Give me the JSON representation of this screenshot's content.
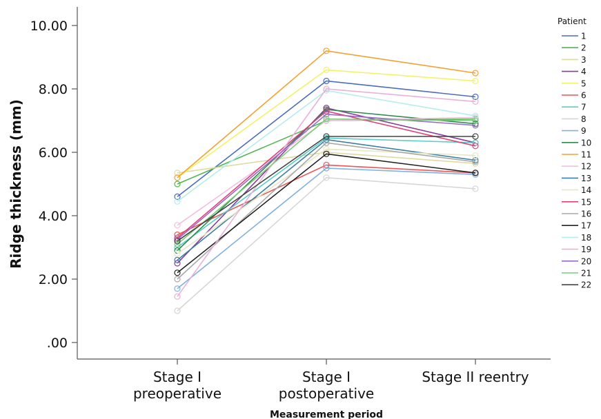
{
  "chart_data": {
    "type": "line",
    "categories": [
      "Stage I|preoperative",
      "Stage I|postoperative",
      "Stage II reentry"
    ],
    "ylabel": "Ridge thickness (mm)",
    "xlabel": "Measurement period",
    "ylim": [
      0,
      10
    ],
    "yticks": [
      0,
      2,
      4,
      6,
      8,
      10
    ],
    "ytick_labels": [
      ".00",
      "2.00",
      "4.00",
      "6.00",
      "8.00",
      "10.00"
    ],
    "legend_title": "Patient",
    "legend_position": "right",
    "grid": false,
    "marker": "open-circle",
    "series": [
      {
        "name": "1",
        "color": "#4a6cbf",
        "values": [
          4.6,
          8.25,
          7.75
        ]
      },
      {
        "name": "2",
        "color": "#52b552",
        "values": [
          5.0,
          7.0,
          7.05
        ]
      },
      {
        "name": "3",
        "color": "#dedba0",
        "values": [
          5.35,
          6.0,
          5.65
        ]
      },
      {
        "name": "4",
        "color": "#8a3a9a",
        "values": [
          2.5,
          7.4,
          6.3
        ]
      },
      {
        "name": "5",
        "color": "#f2f266",
        "values": [
          5.2,
          8.6,
          8.25
        ]
      },
      {
        "name": "6",
        "color": "#ee5555",
        "values": [
          3.4,
          5.6,
          5.35
        ]
      },
      {
        "name": "7",
        "color": "#55cfc8",
        "values": [
          3.0,
          6.45,
          6.3
        ]
      },
      {
        "name": "8",
        "color": "#d6d6d6",
        "values": [
          1.0,
          5.2,
          4.85
        ]
      },
      {
        "name": "9",
        "color": "#80b0e0",
        "values": [
          1.7,
          5.5,
          5.3
        ]
      },
      {
        "name": "10",
        "color": "#2e8a4a",
        "values": [
          2.9,
          7.35,
          6.9
        ]
      },
      {
        "name": "11",
        "color": "#f5a030",
        "values": [
          5.2,
          9.2,
          8.5
        ]
      },
      {
        "name": "12",
        "color": "#f0c0e0",
        "values": [
          3.7,
          7.0,
          7.1
        ]
      },
      {
        "name": "13",
        "color": "#3c7fa0",
        "values": [
          2.6,
          6.4,
          5.75
        ]
      },
      {
        "name": "14",
        "color": "#e8e6c4",
        "values": [
          2.8,
          6.1,
          5.9
        ]
      },
      {
        "name": "15",
        "color": "#e0407a",
        "values": [
          3.3,
          7.3,
          6.2
        ]
      },
      {
        "name": "16",
        "color": "#a8a8a8",
        "values": [
          2.0,
          6.3,
          5.7
        ]
      },
      {
        "name": "17",
        "color": "#222222",
        "values": [
          2.2,
          5.95,
          5.35
        ]
      },
      {
        "name": "18",
        "color": "#b6ecec",
        "values": [
          4.45,
          7.95,
          7.15
        ]
      },
      {
        "name": "19",
        "color": "#eab0d8",
        "values": [
          1.45,
          8.0,
          7.6
        ]
      },
      {
        "name": "20",
        "color": "#9a6ac8",
        "values": [
          3.25,
          7.2,
          6.85
        ]
      },
      {
        "name": "21",
        "color": "#7acc7a",
        "values": [
          3.1,
          7.05,
          7.0
        ]
      },
      {
        "name": "22",
        "color": "#444444",
        "values": [
          3.2,
          6.5,
          6.5
        ]
      }
    ]
  }
}
